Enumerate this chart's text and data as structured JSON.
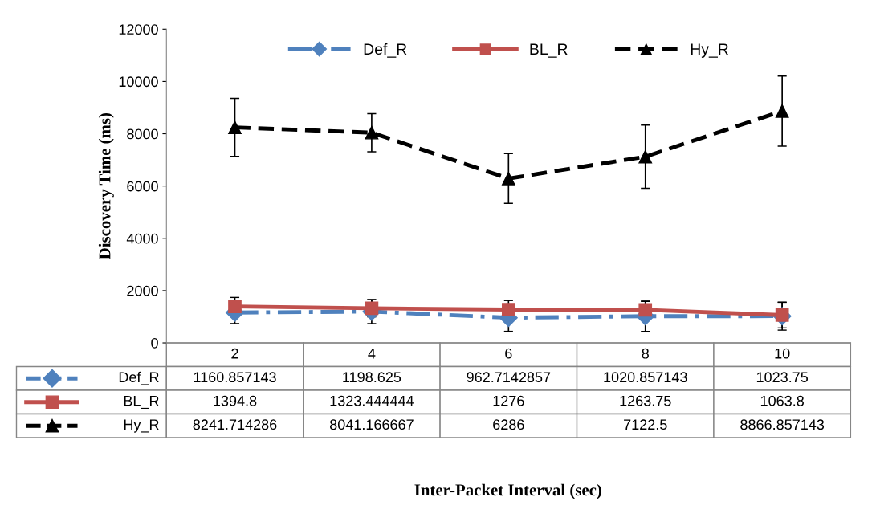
{
  "chart_data": {
    "type": "line",
    "annotations": [
      "Inter-Packet Interval (sec)"
    ],
    "ylabel": "Discovery Time (ms)",
    "categories": [
      "2",
      "4",
      "6",
      "8",
      "10"
    ],
    "series": [
      {
        "name": "Def_R",
        "color": "#4f81bd",
        "marker": "diamond",
        "line_style": "dashdot",
        "values": [
          1160.857143,
          1198.625,
          962.7142857,
          1020.857143,
          1023.75
        ],
        "errors": [
          420,
          460,
          520,
          580,
          535
        ]
      },
      {
        "name": "BL_R",
        "color": "#c0504d",
        "marker": "square",
        "line_style": "solid",
        "values": [
          1394.8,
          1323.444444,
          1276,
          1263.75,
          1063.8
        ],
        "errors": [
          345,
          330,
          345,
          325,
          490
        ]
      },
      {
        "name": "Hy_R",
        "color": "#000000",
        "marker": "triangle",
        "line_style": "dashed",
        "values": [
          8241.714286,
          8041.166667,
          6286,
          7122.5,
          8866.857143
        ],
        "errors": [
          1110,
          730,
          950,
          1210,
          1340
        ]
      }
    ],
    "ylim": [
      0,
      12000
    ],
    "yticks": [
      0,
      2000,
      4000,
      6000,
      8000,
      10000,
      12000
    ],
    "grid": false,
    "legend": "top",
    "data_labels": true
  }
}
